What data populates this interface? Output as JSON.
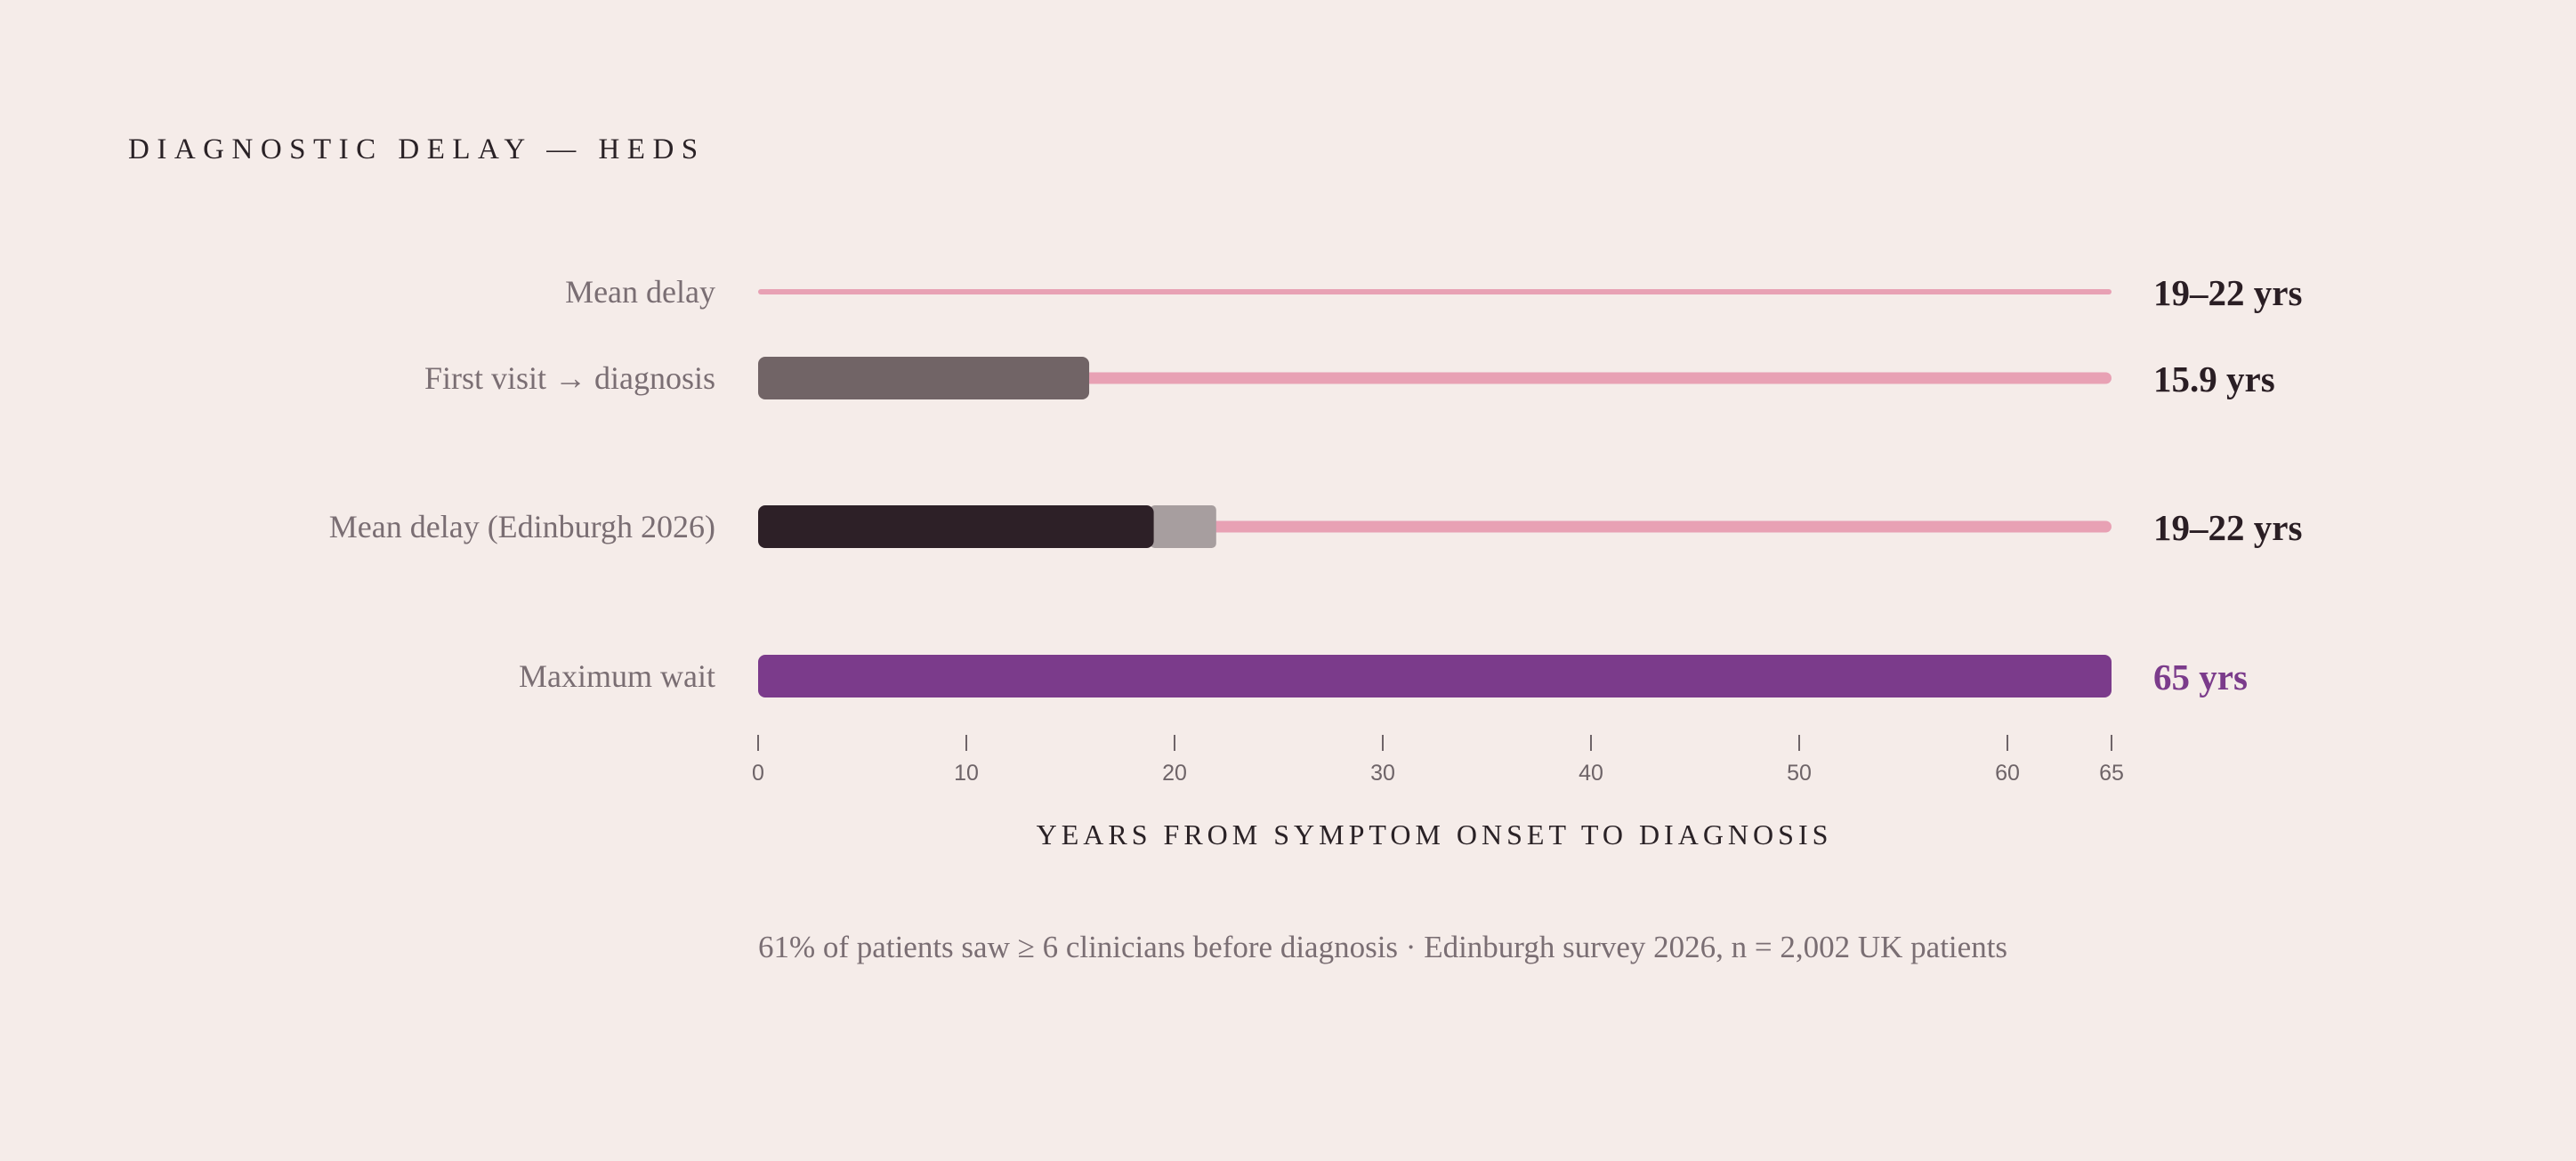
{
  "colors": {
    "background": "#f5ece9",
    "track": "#e8a1b4",
    "grey_bar": "#716466",
    "dark_bar": "#2d2027",
    "range_bar": "#a79e9f",
    "accent": "#7b3b8b",
    "label": "#7a6e73",
    "value": "#2a1e24"
  },
  "chart_data": {
    "type": "bar",
    "orientation": "horizontal",
    "title": "DIAGNOSTIC DELAY — HEDS",
    "xlabel": "YEARS FROM SYMPTOM ONSET TO DIAGNOSIS",
    "xlim": [
      0,
      65
    ],
    "x_ticks": [
      0,
      10,
      20,
      30,
      40,
      50,
      60,
      65
    ],
    "x_tick_labels": [
      "0",
      "10",
      "20",
      "30",
      "40",
      "50",
      "60",
      "65"
    ],
    "rows": [
      {
        "label": "Mean delay",
        "value_label": "19–22 yrs",
        "style": "track-only"
      },
      {
        "label": "First visit → diagnosis",
        "value": 15.9,
        "value_label": "15.9 yrs",
        "style": "grey"
      },
      {
        "label": "Mean delay (Edinburgh 2026)",
        "value": 19,
        "range_end": 22,
        "value_label": "19–22 yrs",
        "style": "dark-range"
      },
      {
        "label": "Maximum wait",
        "value": 65,
        "value_label": "65 yrs",
        "style": "accent"
      }
    ],
    "footnote": "61% of patients saw ≥ 6 clinicians before diagnosis · Edinburgh survey 2026, n = 2,002 UK patients"
  }
}
